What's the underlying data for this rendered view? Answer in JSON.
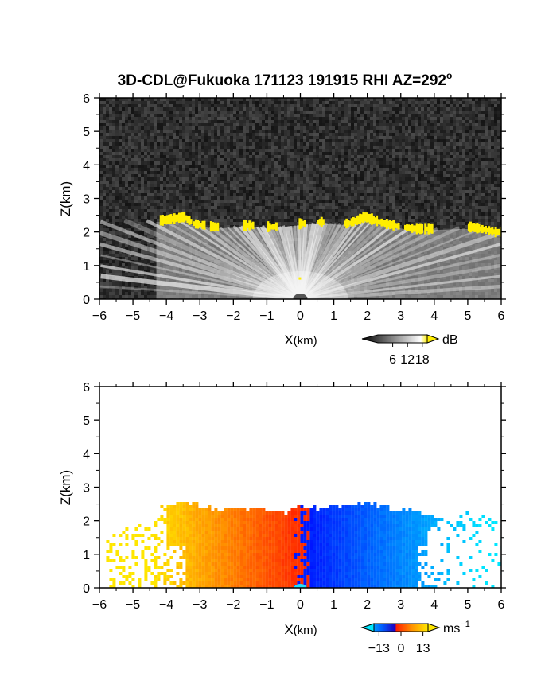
{
  "chart_data": [
    {
      "type": "heatmap",
      "title": "3D-CDL@Fukuoka 171123 191915 RHI AZ=292",
      "title_superscript": "o",
      "xlabel": "X",
      "xlabel_unit": "(km)",
      "ylabel": "Z(km)",
      "xlim": [
        -6,
        6
      ],
      "ylim": [
        0,
        6
      ],
      "xticks": [
        "-6",
        "-5",
        "-4",
        "-3",
        "-2",
        "-1",
        "0",
        "1",
        "2",
        "3",
        "4",
        "5",
        "6"
      ],
      "yticks": [
        "0",
        "1",
        "2",
        "3",
        "4",
        "5",
        "6"
      ],
      "colorbar": {
        "ticks": [
          "6",
          "12",
          "18"
        ],
        "tick_values": [
          6,
          12,
          18
        ],
        "range": [
          0,
          20
        ],
        "unit": "dB"
      },
      "colors": {
        "background": "#2a2a2a",
        "signal": "#f0f0f0",
        "cloud": "#ffee00"
      },
      "cloud_base_km": [
        {
          "x": -4.1,
          "z": 2.35
        },
        {
          "x": -3.5,
          "z": 2.45
        },
        {
          "x": -3.2,
          "z": 2.25
        },
        {
          "x": -2.6,
          "z": 2.15
        },
        {
          "x": -1.5,
          "z": 2.2
        },
        {
          "x": -0.9,
          "z": 2.15
        },
        {
          "x": 0.0,
          "z": 2.25
        },
        {
          "x": 0.6,
          "z": 2.3
        },
        {
          "x": 1.4,
          "z": 2.25
        },
        {
          "x": 1.9,
          "z": 2.45
        },
        {
          "x": 2.5,
          "z": 2.25
        },
        {
          "x": 3.3,
          "z": 2.1
        },
        {
          "x": 3.8,
          "z": 2.1
        },
        {
          "x": 5.1,
          "z": 2.15
        },
        {
          "x": 5.8,
          "z": 2.0
        }
      ]
    },
    {
      "type": "heatmap",
      "xlabel": "X",
      "xlabel_unit": "(km)",
      "ylabel": "Z(km)",
      "xlim": [
        -6,
        6
      ],
      "ylim": [
        0,
        6
      ],
      "xticks": [
        "-6",
        "-5",
        "-4",
        "-3",
        "-2",
        "-1",
        "0",
        "1",
        "2",
        "3",
        "4",
        "5",
        "6"
      ],
      "yticks": [
        "0",
        "1",
        "2",
        "3",
        "4",
        "5",
        "6"
      ],
      "colorbar": {
        "ticks": [
          "−13",
          "0",
          "13"
        ],
        "tick_values": [
          -13,
          0,
          13
        ],
        "range": [
          -16,
          16
        ],
        "unit": "ms",
        "unit_superscript": "−1"
      },
      "colors": {
        "positive_near": "#ff3000",
        "positive_far": "#ffe000",
        "negative_near": "#0010ff",
        "negative_far": "#00e0ff"
      },
      "echo_top_km": [
        {
          "x": -4.1,
          "z": 2.4
        },
        {
          "x": -3.5,
          "z": 2.5
        },
        {
          "x": -2.5,
          "z": 2.3
        },
        {
          "x": -1.5,
          "z": 2.3
        },
        {
          "x": -0.5,
          "z": 2.2
        },
        {
          "x": 0.0,
          "z": 2.4
        },
        {
          "x": 0.5,
          "z": 2.3
        },
        {
          "x": 1.5,
          "z": 2.4
        },
        {
          "x": 2.0,
          "z": 2.5
        },
        {
          "x": 2.8,
          "z": 2.3
        },
        {
          "x": 3.5,
          "z": 2.2
        },
        {
          "x": 4.0,
          "z": 2.1
        },
        {
          "x": 5.2,
          "z": 2.2
        },
        {
          "x": 6.0,
          "z": 2.1
        }
      ]
    }
  ]
}
